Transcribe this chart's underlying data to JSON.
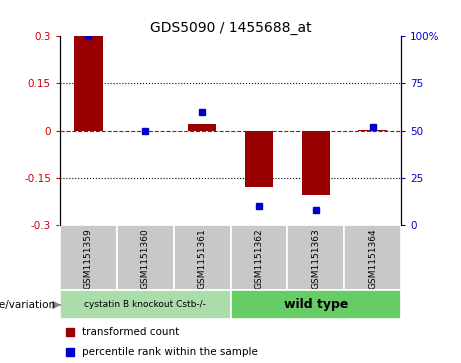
{
  "title": "GDS5090 / 1455688_at",
  "samples": [
    "GSM1151359",
    "GSM1151360",
    "GSM1151361",
    "GSM1151362",
    "GSM1151363",
    "GSM1151364"
  ],
  "red_bars": [
    0.3,
    0.0,
    0.02,
    -0.18,
    -0.205,
    0.002
  ],
  "blue_dots": [
    100,
    50,
    60,
    10,
    8,
    52
  ],
  "ylim_left": [
    -0.3,
    0.3
  ],
  "ylim_right": [
    0,
    100
  ],
  "yticks_left": [
    -0.3,
    -0.15,
    0,
    0.15,
    0.3
  ],
  "yticks_right": [
    0,
    25,
    50,
    75,
    100
  ],
  "ytick_labels_left": [
    "-0.3",
    "-0.15",
    "0",
    "0.15",
    "0.3"
  ],
  "ytick_labels_right": [
    "0",
    "25",
    "50",
    "75",
    "100%"
  ],
  "hlines": [
    0.15,
    -0.15
  ],
  "bar_color": "#990000",
  "dot_color": "#0000cc",
  "zero_line_color": "#cc0000",
  "hline_color": "#000000",
  "group1_label": "cystatin B knockout Cstb-/-",
  "group2_label": "wild type",
  "group1_indices": [
    0,
    1,
    2
  ],
  "group2_indices": [
    3,
    4,
    5
  ],
  "group1_color": "#aaddaa",
  "group2_color": "#66cc66",
  "genotype_label": "genotype/variation",
  "legend_red": "transformed count",
  "legend_blue": "percentile rank within the sample",
  "bar_width": 0.5,
  "bg_color": "#ffffff",
  "plot_bg_color": "#ffffff",
  "tick_color_left": "#cc0000",
  "tick_color_right": "#0000cc"
}
